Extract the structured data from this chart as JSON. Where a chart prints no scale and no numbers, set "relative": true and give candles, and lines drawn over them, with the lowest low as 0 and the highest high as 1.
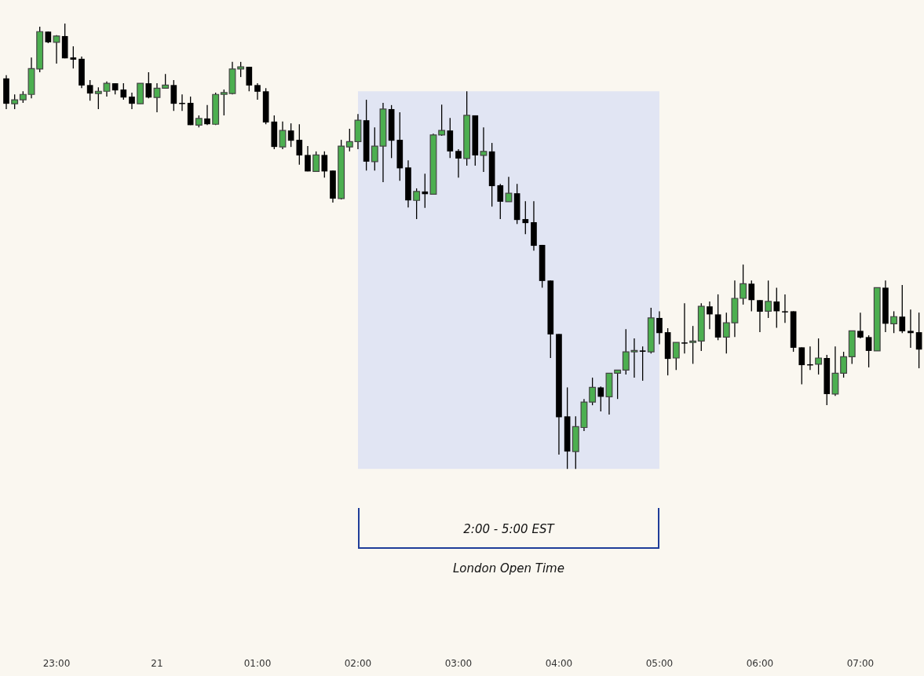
{
  "chart_data": {
    "type": "candlestick",
    "relative": true,
    "annotations": [
      "2:00 - 5:00 EST",
      "London Open Time"
    ],
    "tick_labels": "x",
    "grid": false,
    "legend": false,
    "bands": [
      {
        "axis": "x",
        "from": "02:00",
        "to": "05:00",
        "color": "#e1e5f3"
      }
    ],
    "categories": [
      null,
      null,
      null,
      null,
      null,
      null,
      "23:00",
      null,
      null,
      null,
      null,
      null,
      null,
      null,
      null,
      null,
      null,
      null,
      "21",
      null,
      null,
      null,
      null,
      null,
      null,
      null,
      null,
      null,
      null,
      null,
      "01:00",
      null,
      null,
      null,
      null,
      null,
      null,
      null,
      null,
      null,
      null,
      null,
      "02:00",
      null,
      null,
      null,
      null,
      null,
      null,
      null,
      null,
      null,
      null,
      null,
      "03:00",
      null,
      null,
      null,
      null,
      null,
      null,
      null,
      null,
      null,
      null,
      null,
      "04:00",
      null,
      null,
      null,
      null,
      null,
      null,
      null,
      null,
      null,
      null,
      null,
      "05:00",
      null,
      null,
      null,
      null,
      null,
      null,
      null,
      null,
      null,
      null,
      null,
      "06:00",
      null,
      null,
      null,
      null,
      null,
      null,
      null,
      null,
      null,
      null,
      null,
      "07:00",
      null,
      null,
      null,
      null,
      null,
      null,
      null
    ],
    "ohlc": [
      [
        0.877,
        0.884,
        0.808,
        0.82
      ],
      [
        0.82,
        0.841,
        0.808,
        0.829
      ],
      [
        0.829,
        0.848,
        0.822,
        0.841
      ],
      [
        0.841,
        0.924,
        0.832,
        0.899
      ],
      [
        0.898,
        0.993,
        0.891,
        0.982
      ],
      [
        0.982,
        0.982,
        0.956,
        0.958
      ],
      [
        0.958,
        0.974,
        0.91,
        0.972
      ],
      [
        0.972,
        1,
        0.922,
        0.922
      ],
      [
        0.924,
        0.949,
        0.899,
        0.919
      ],
      [
        0.921,
        0.926,
        0.855,
        0.861
      ],
      [
        0.862,
        0.873,
        0.827,
        0.843
      ],
      [
        0.843,
        0.857,
        0.808,
        0.848
      ],
      [
        0.848,
        0.87,
        0.836,
        0.866
      ],
      [
        0.866,
        0.866,
        0.841,
        0.85
      ],
      [
        0.852,
        0.866,
        0.829,
        0.834
      ],
      [
        0.836,
        0.845,
        0.808,
        0.82
      ],
      [
        0.82,
        0.866,
        0.82,
        0.866
      ],
      [
        0.866,
        0.891,
        0.832,
        0.834
      ],
      [
        0.834,
        0.866,
        0.801,
        0.855
      ],
      [
        0.855,
        0.887,
        0.855,
        0.862
      ],
      [
        0.862,
        0.873,
        0.804,
        0.82
      ],
      [
        0.822,
        0.841,
        0.804,
        0.822
      ],
      [
        0.822,
        0.836,
        0.772,
        0.772
      ],
      [
        0.772,
        0.794,
        0.767,
        0.787
      ],
      [
        0.787,
        0.817,
        0.772,
        0.774
      ],
      [
        0.774,
        0.845,
        0.772,
        0.841
      ],
      [
        0.841,
        0.852,
        0.794,
        0.845
      ],
      [
        0.843,
        0.914,
        0.841,
        0.898
      ],
      [
        0.898,
        0.914,
        0.88,
        0.903
      ],
      [
        0.903,
        0.903,
        0.848,
        0.861
      ],
      [
        0.862,
        0.866,
        0.829,
        0.847
      ],
      [
        0.848,
        0.855,
        0.774,
        0.778
      ],
      [
        0.78,
        0.794,
        0.718,
        0.723
      ],
      [
        0.723,
        0.78,
        0.718,
        0.76
      ],
      [
        0.76,
        0.776,
        0.723,
        0.737
      ],
      [
        0.739,
        0.774,
        0.683,
        0.704
      ],
      [
        0.705,
        0.725,
        0.668,
        0.668
      ],
      [
        0.668,
        0.713,
        0.667,
        0.705
      ],
      [
        0.705,
        0.713,
        0.654,
        0.668
      ],
      [
        0.67,
        0.67,
        0.598,
        0.607
      ],
      [
        0.607,
        0.739,
        0.605,
        0.725
      ],
      [
        0.723,
        0.764,
        0.713,
        0.735
      ],
      [
        0.735,
        0.797,
        0.718,
        0.783
      ],
      [
        0.783,
        0.829,
        0.67,
        0.69
      ],
      [
        0.69,
        0.767,
        0.67,
        0.725
      ],
      [
        0.725,
        0.822,
        0.644,
        0.808
      ],
      [
        0.808,
        0.817,
        0.698,
        0.737
      ],
      [
        0.739,
        0.801,
        0.647,
        0.675
      ],
      [
        0.677,
        0.693,
        0.587,
        0.603
      ],
      [
        0.603,
        0.63,
        0.561,
        0.623
      ],
      [
        0.623,
        0.663,
        0.586,
        0.617
      ],
      [
        0.617,
        0.753,
        0.616,
        0.75
      ],
      [
        0.75,
        0.818,
        0.748,
        0.76
      ],
      [
        0.76,
        0.788,
        0.698,
        0.713
      ],
      [
        0.714,
        0.718,
        0.654,
        0.697
      ],
      [
        0.697,
        0.848,
        0.681,
        0.794
      ],
      [
        0.794,
        0.794,
        0.681,
        0.704
      ],
      [
        0.704,
        0.767,
        0.667,
        0.713
      ],
      [
        0.713,
        0.732,
        0.589,
        0.635
      ],
      [
        0.637,
        0.64,
        0.561,
        0.6
      ],
      [
        0.6,
        0.656,
        0.6,
        0.619
      ],
      [
        0.619,
        0.64,
        0.55,
        0.559
      ],
      [
        0.561,
        0.601,
        0.527,
        0.552
      ],
      [
        0.554,
        0.601,
        0.49,
        0.501
      ],
      [
        0.503,
        0.503,
        0.407,
        0.422
      ],
      [
        0.423,
        0.423,
        0.249,
        0.302
      ],
      [
        0.303,
        0.303,
        0.032,
        0.116
      ],
      [
        0.118,
        0.183,
        0,
        0.039
      ],
      [
        0.039,
        0.118,
        0,
        0.095
      ],
      [
        0.093,
        0.157,
        0.085,
        0.15
      ],
      [
        0.15,
        0.205,
        0.143,
        0.183
      ],
      [
        0.183,
        0.185,
        0.129,
        0.162
      ],
      [
        0.162,
        0.215,
        0.122,
        0.215
      ],
      [
        0.215,
        0.222,
        0.157,
        0.222
      ],
      [
        0.222,
        0.314,
        0.212,
        0.263
      ],
      [
        0.263,
        0.293,
        0.205,
        0.266
      ],
      [
        0.266,
        0.275,
        0.198,
        0.263
      ],
      [
        0.263,
        0.362,
        0.259,
        0.339
      ],
      [
        0.339,
        0.354,
        0.28,
        0.305
      ],
      [
        0.307,
        0.316,
        0.21,
        0.247
      ],
      [
        0.249,
        0.284,
        0.222,
        0.284
      ],
      [
        0.284,
        0.372,
        0.259,
        0.284
      ],
      [
        0.284,
        0.321,
        0.236,
        0.287
      ],
      [
        0.287,
        0.372,
        0.265,
        0.365
      ],
      [
        0.365,
        0.376,
        0.314,
        0.347
      ],
      [
        0.347,
        0.392,
        0.289,
        0.295
      ],
      [
        0.296,
        0.351,
        0.259,
        0.328
      ],
      [
        0.328,
        0.423,
        0.296,
        0.383
      ],
      [
        0.383,
        0.459,
        0.369,
        0.416
      ],
      [
        0.416,
        0.423,
        0.354,
        0.379
      ],
      [
        0.379,
        0.379,
        0.307,
        0.353
      ],
      [
        0.354,
        0.423,
        0.339,
        0.376
      ],
      [
        0.376,
        0.407,
        0.317,
        0.354
      ],
      [
        0.354,
        0.392,
        0.328,
        0.354
      ],
      [
        0.354,
        0.354,
        0.263,
        0.272
      ],
      [
        0.273,
        0.273,
        0.19,
        0.233
      ],
      [
        0.235,
        0.275,
        0.222,
        0.235
      ],
      [
        0.235,
        0.293,
        0.212,
        0.249
      ],
      [
        0.249,
        0.256,
        0.143,
        0.168
      ],
      [
        0.168,
        0.275,
        0.164,
        0.215
      ],
      [
        0.215,
        0.263,
        0.205,
        0.252
      ],
      [
        0.252,
        0.31,
        0.236,
        0.31
      ],
      [
        0.31,
        0.351,
        0.293,
        0.295
      ],
      [
        0.296,
        0.3,
        0.228,
        0.265
      ],
      [
        0.265,
        0.407,
        0.265,
        0.407
      ],
      [
        0.407,
        0.423,
        0.307,
        0.326
      ],
      [
        0.326,
        0.354,
        0.305,
        0.342
      ],
      [
        0.342,
        0.413,
        0.305,
        0.309
      ],
      [
        0.31,
        0.358,
        0.272,
        0.305
      ],
      [
        0.307,
        0.351,
        0.226,
        0.268
      ]
    ]
  }
}
